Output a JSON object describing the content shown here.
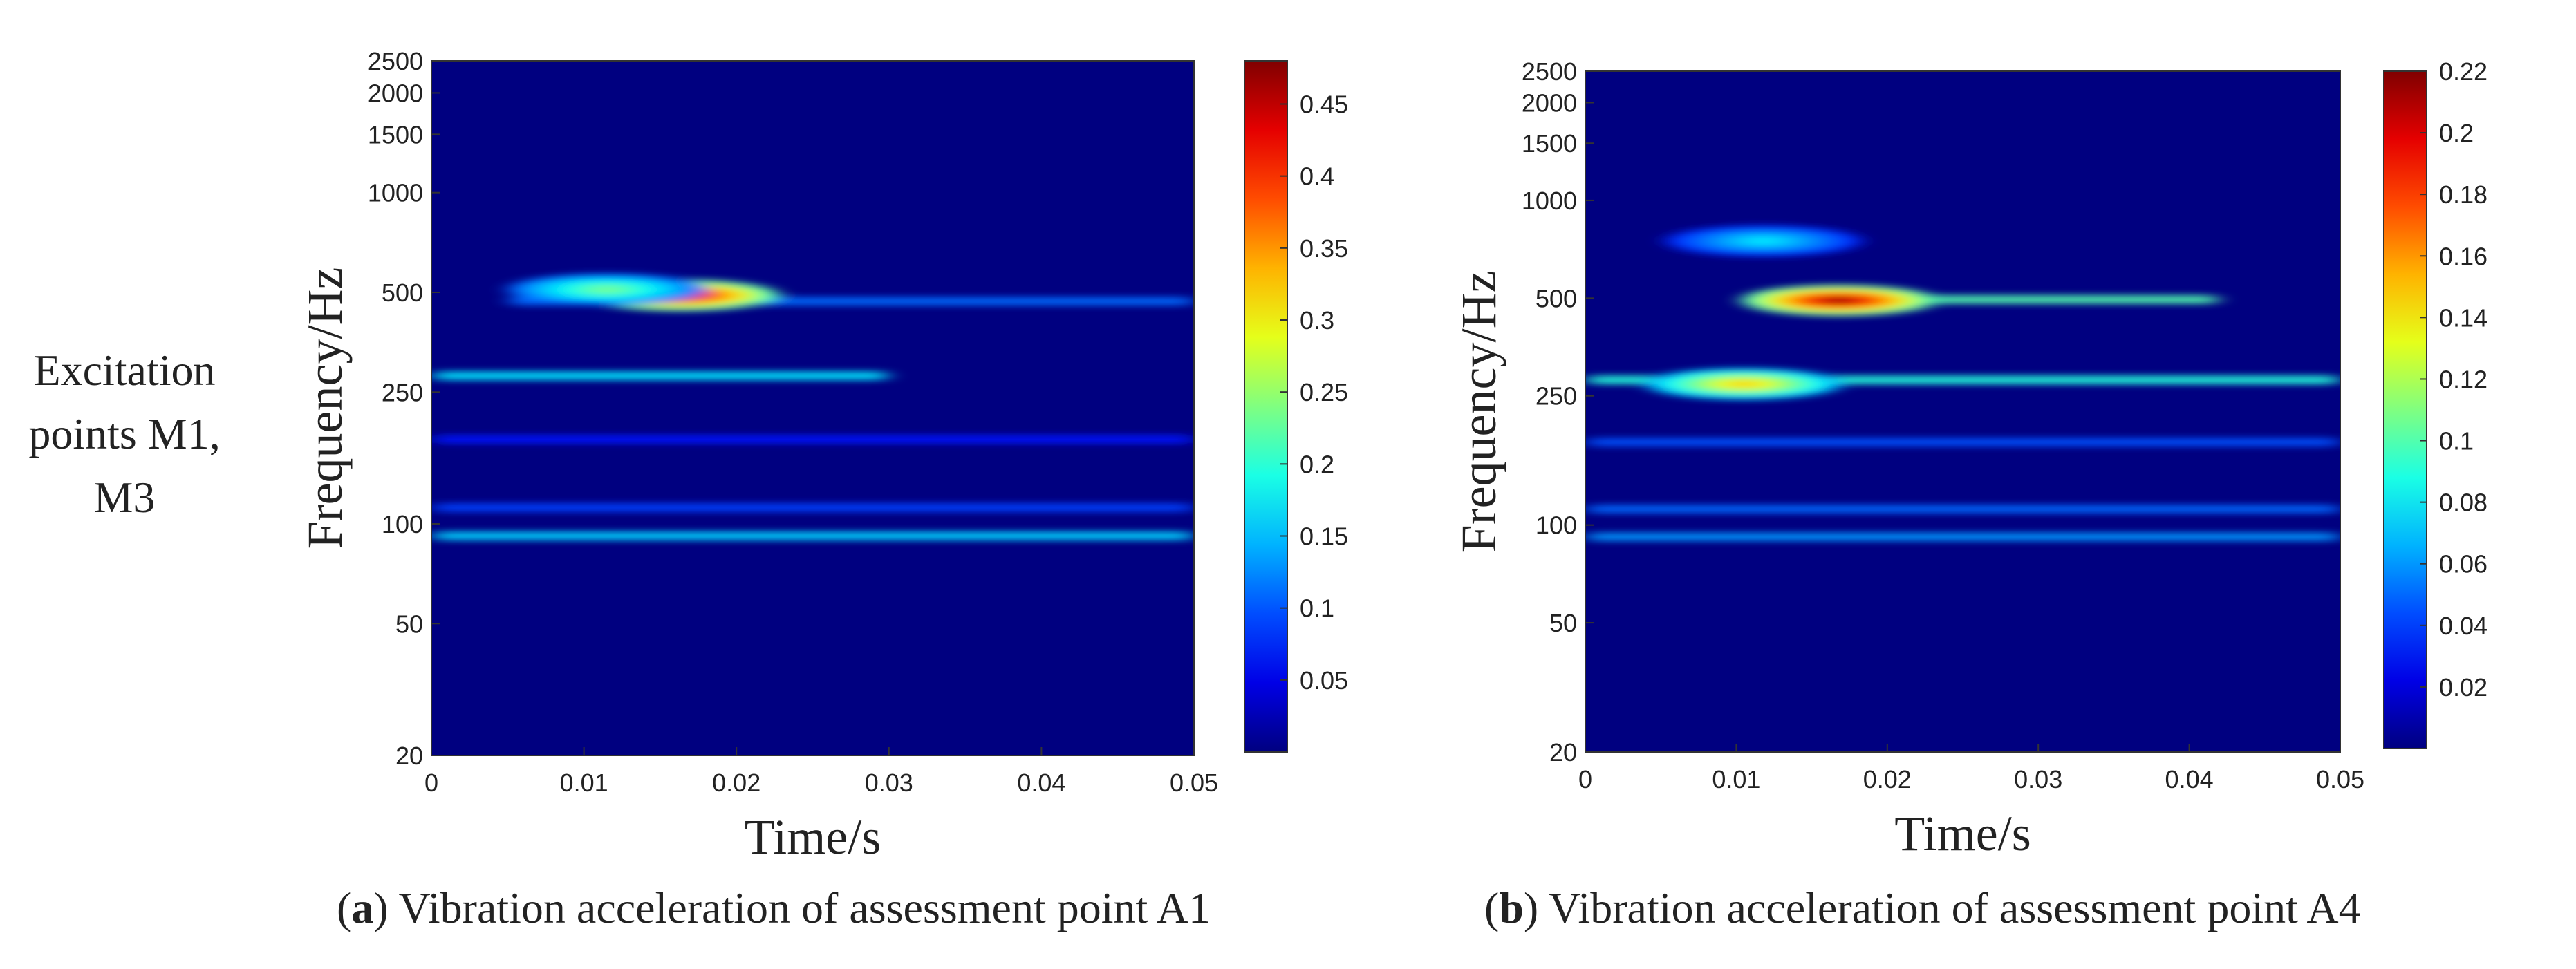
{
  "row_label": {
    "line1": "Excitation",
    "line2": "points M1,",
    "line3": "M3"
  },
  "colormap": "jet",
  "chart_data": [
    {
      "type": "heatmap",
      "caption_letter": "a",
      "caption_rest": " Vibration acceleration of assessment point A1",
      "xlabel": "Time/s",
      "ylabel": "Frequency/Hz",
      "xlim": [
        0,
        0.05
      ],
      "x_ticks": [
        0,
        0.01,
        0.02,
        0.03,
        0.04,
        0.05
      ],
      "x_tick_labels": [
        "0",
        "0.01",
        "0.02",
        "0.03",
        "0.04",
        "0.05"
      ],
      "y_scale": "log",
      "ylim": [
        20,
        2500
      ],
      "y_ticks": [
        20,
        50,
        100,
        250,
        500,
        1000,
        1500,
        2000,
        2500
      ],
      "y_tick_labels": [
        "20",
        "50",
        "100",
        "250",
        "500",
        "1000",
        "1500",
        "2000",
        "2500"
      ],
      "colorbar_range": [
        0,
        0.48
      ],
      "colorbar_ticks": [
        0.05,
        0.1,
        0.15,
        0.2,
        0.25,
        0.3,
        0.35,
        0.4,
        0.45
      ],
      "colorbar_tick_labels": [
        "0.05",
        "0.1",
        "0.15",
        "0.2",
        "0.25",
        "0.3",
        "0.35",
        "0.4",
        "0.45"
      ],
      "bands": [
        {
          "freq_hz": 92,
          "t_start": 0,
          "t_end": 0.05,
          "value": 0.16
        },
        {
          "freq_hz": 112,
          "t_start": 0,
          "t_end": 0.05,
          "value": 0.09
        },
        {
          "freq_hz": 180,
          "t_start": 0,
          "t_end": 0.05,
          "value": 0.07
        },
        {
          "freq_hz": 280,
          "t_start": 0,
          "t_end": 0.03,
          "value": 0.17
        },
        {
          "freq_hz": 470,
          "t_start": 0.005,
          "t_end": 0.05,
          "value": 0.11
        }
      ],
      "peaks": [
        {
          "t": 0.0163,
          "freq_hz": 490,
          "value": 0.47
        },
        {
          "t": 0.0115,
          "freq_hz": 510,
          "value": 0.24
        }
      ]
    },
    {
      "type": "heatmap",
      "caption_letter": "b",
      "caption_rest": " Vibration acceleration of assessment point A4",
      "xlabel": "Time/s",
      "ylabel": "Frequency/Hz",
      "xlim": [
        0,
        0.05
      ],
      "x_ticks": [
        0,
        0.01,
        0.02,
        0.03,
        0.04,
        0.05
      ],
      "x_tick_labels": [
        "0",
        "0.01",
        "0.02",
        "0.03",
        "0.04",
        "0.05"
      ],
      "y_scale": "log",
      "ylim": [
        20,
        2500
      ],
      "y_ticks": [
        20,
        50,
        100,
        250,
        500,
        1000,
        1500,
        2000,
        2500
      ],
      "y_tick_labels": [
        "20",
        "50",
        "100",
        "250",
        "500",
        "1000",
        "1500",
        "2000",
        "2500"
      ],
      "colorbar_range": [
        0,
        0.22
      ],
      "colorbar_ticks": [
        0.02,
        0.04,
        0.06,
        0.08,
        0.1,
        0.12,
        0.14,
        0.16,
        0.18,
        0.2,
        0.22
      ],
      "colorbar_tick_labels": [
        "0.02",
        "0.04",
        "0.06",
        "0.08",
        "0.1",
        "0.12",
        "0.14",
        "0.16",
        "0.18",
        "0.2",
        "0.22"
      ],
      "bands": [
        {
          "freq_hz": 92,
          "t_start": 0,
          "t_end": 0.05,
          "value": 0.06
        },
        {
          "freq_hz": 112,
          "t_start": 0,
          "t_end": 0.05,
          "value": 0.05
        },
        {
          "freq_hz": 180,
          "t_start": 0,
          "t_end": 0.05,
          "value": 0.045
        },
        {
          "freq_hz": 280,
          "t_start": 0,
          "t_end": 0.05,
          "value": 0.09
        },
        {
          "freq_hz": 495,
          "t_start": 0.02,
          "t_end": 0.042,
          "value": 0.1
        }
      ],
      "peaks": [
        {
          "t": 0.0168,
          "freq_hz": 492,
          "value": 0.22
        },
        {
          "t": 0.0105,
          "freq_hz": 272,
          "value": 0.15
        },
        {
          "t": 0.0118,
          "freq_hz": 750,
          "value": 0.08
        }
      ]
    }
  ]
}
